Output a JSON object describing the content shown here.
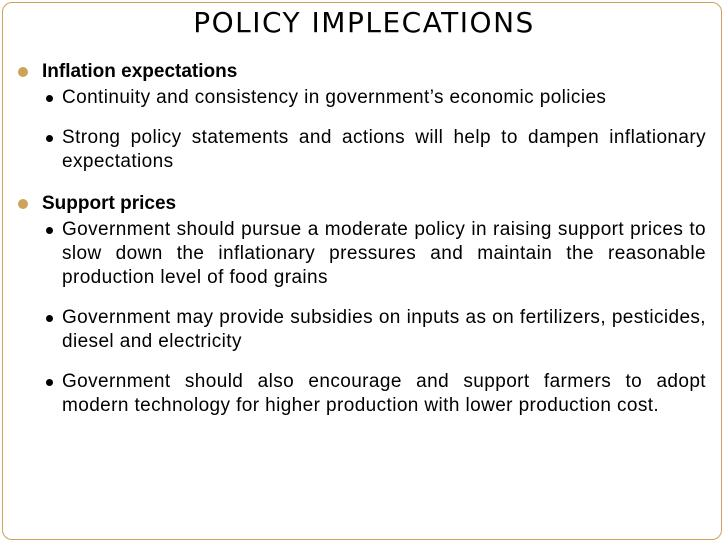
{
  "title": "POLICY IMPLECATIONS",
  "sections": [
    {
      "heading": "Inflation expectations",
      "points": [
        "Continuity and consistency in government’s economic policies",
        "Strong policy statements and actions will help to dampen inflationary expectations"
      ]
    },
    {
      "heading": "Support prices",
      "points": [
        "Government should pursue a moderate policy in raising support prices to slow down the inflationary pressures and maintain the reasonable production level of food grains",
        "Government may provide subsidies on inputs as on fertilizers, pesticides, diesel and electricity",
        "Government should also encourage and support farmers to adopt modern technology for higher production with lower production cost."
      ]
    }
  ],
  "colors": {
    "accent": "#cfa25a",
    "text": "#000000",
    "background": "#ffffff"
  }
}
